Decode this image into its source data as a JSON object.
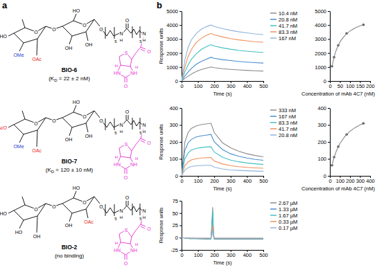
{
  "panel_labels": [
    "a",
    "b"
  ],
  "compounds": [
    {
      "name": "BIO-6",
      "caption": [
        "(K",
        "D",
        " = 22 ± 2 nM)"
      ],
      "atoms": [
        {
          "text": "HO",
          "color": "#000000"
        },
        {
          "text": "OMe",
          "color": "#1f3fd0"
        },
        {
          "text": "OAc",
          "color": "#e3231a"
        },
        {
          "text": "O",
          "color": "#000000"
        },
        {
          "text": "O",
          "color": "#000000"
        },
        {
          "text": "HO",
          "color": "#000000"
        },
        {
          "text": "O",
          "color": "#000000"
        },
        {
          "text": "OH",
          "color": "#000000"
        },
        {
          "text": "OH",
          "color": "#000000"
        },
        {
          "text": "O",
          "color": "#000000"
        }
      ]
    },
    {
      "name": "BIO-7",
      "caption": [
        "(K",
        "D",
        " = 120 ± 10 nM)"
      ],
      "atoms": [
        {
          "text": "AcO",
          "color": "#e3231a"
        },
        {
          "text": "OMe",
          "color": "#1f3fd0"
        },
        {
          "text": "OAc",
          "color": "#e3231a"
        },
        {
          "text": "O",
          "color": "#000000"
        },
        {
          "text": "O",
          "color": "#000000"
        },
        {
          "text": "HO",
          "color": "#000000"
        },
        {
          "text": "O",
          "color": "#000000"
        },
        {
          "text": "OH",
          "color": "#000000"
        },
        {
          "text": "OH",
          "color": "#000000"
        },
        {
          "text": "O",
          "color": "#000000"
        }
      ]
    },
    {
      "name": "BIO-2",
      "caption": [
        "(no binding)"
      ],
      "atoms": [
        {
          "text": "HO",
          "color": "#000000"
        },
        {
          "text": "HO",
          "color": "#000000"
        },
        {
          "text": "OH",
          "color": "#000000"
        },
        {
          "text": "O",
          "color": "#000000"
        },
        {
          "text": "O",
          "color": "#000000"
        },
        {
          "text": "HO",
          "color": "#000000"
        },
        {
          "text": "O",
          "color": "#000000"
        },
        {
          "text": "OH",
          "color": "#000000"
        },
        {
          "text": "OAc",
          "color": "#e3231a"
        },
        {
          "text": "O",
          "color": "#000000"
        }
      ]
    }
  ],
  "linker_atoms": [
    {
      "text": "5",
      "color": "#000000"
    },
    {
      "text": "N",
      "color": "#000000"
    },
    {
      "text": "H",
      "color": "#000000"
    },
    {
      "text": "O",
      "color": "#000000"
    },
    {
      "text": "5",
      "color": "#000000"
    },
    {
      "text": "N",
      "color": "#000000"
    },
    {
      "text": "H",
      "color": "#000000"
    },
    {
      "text": "O",
      "color": "#e62fd3"
    },
    {
      "text": "S",
      "color": "#e62fd3"
    },
    {
      "text": "H",
      "color": "#e62fd3"
    },
    {
      "text": "H",
      "color": "#e62fd3"
    },
    {
      "text": "HN",
      "color": "#e62fd3"
    },
    {
      "text": "NH",
      "color": "#e62fd3"
    },
    {
      "text": "O",
      "color": "#e62fd3"
    }
  ],
  "chart_data": [
    {
      "type": "line",
      "xlabel": "Time (s)",
      "ylabel": "Response units",
      "x": [
        0,
        20,
        40,
        60,
        90,
        120,
        150,
        180,
        200,
        250,
        300,
        350,
        400,
        450,
        500
      ],
      "series": [
        {
          "name": "10.4 nM",
          "color": "#8c8c8c",
          "values": [
            0,
            180,
            350,
            500,
            680,
            820,
            920,
            1000,
            950,
            880,
            830,
            790,
            760,
            730,
            710
          ]
        },
        {
          "name": "20.8 nM",
          "color": "#4a8ed0",
          "values": [
            0,
            350,
            650,
            900,
            1200,
            1400,
            1550,
            1700,
            1620,
            1530,
            1460,
            1400,
            1350,
            1310,
            1280
          ]
        },
        {
          "name": "41.7 nM",
          "color": "#43c0c0",
          "values": [
            0,
            650,
            1150,
            1550,
            1950,
            2250,
            2450,
            2600,
            2500,
            2370,
            2270,
            2190,
            2130,
            2080,
            2040
          ]
        },
        {
          "name": "83.3 nM",
          "color": "#f0905a",
          "values": [
            0,
            1000,
            1750,
            2250,
            2750,
            3050,
            3250,
            3400,
            3300,
            3150,
            3030,
            2940,
            2870,
            2810,
            2770
          ]
        },
        {
          "name": "167 nM",
          "color": "#8fb4dc",
          "values": [
            0,
            1500,
            2400,
            2950,
            3400,
            3700,
            3880,
            4000,
            3900,
            3750,
            3620,
            3520,
            3440,
            3370,
            3320
          ]
        }
      ],
      "xlim": [
        0,
        500
      ],
      "xticks": [
        0,
        100,
        200,
        300,
        400,
        500
      ],
      "ylim": [
        0,
        5000
      ],
      "yticks": [
        0,
        1000,
        2000,
        3000,
        4000,
        5000
      ],
      "legend": "right"
    },
    {
      "type": "scatter",
      "xlabel": "Concentration of mAb 4C7 (nM)",
      "series": [
        {
          "type": "scatter",
          "marker": "circle",
          "color": "#555555",
          "x": [
            10.4,
            20.8,
            41.7,
            83.3,
            167
          ],
          "values": [
            1050,
            1700,
            2550,
            3400,
            4020
          ]
        },
        {
          "type": "line",
          "color": "#888888",
          "x": [
            10.4,
            20,
            30,
            40,
            50,
            60,
            80,
            100,
            120,
            140,
            167
          ],
          "values": [
            1032,
            1667,
            2143,
            2500,
            2778,
            3000,
            3333,
            3571,
            3750,
            3889,
            4034
          ]
        }
      ],
      "xlim": [
        0,
        200
      ],
      "xticks": [
        0,
        50,
        100,
        150,
        200
      ],
      "ylim": [
        0,
        5000
      ],
      "yticks": [
        0,
        1000,
        2000,
        3000,
        4000,
        5000
      ]
    },
    {
      "type": "line",
      "xlabel": "Time (s)",
      "ylabel": "Response units",
      "x": [
        0,
        20,
        40,
        60,
        90,
        120,
        150,
        180,
        200,
        250,
        300,
        350,
        400,
        450,
        500
      ],
      "series": [
        {
          "name": "333 nM",
          "color": "#8c8c8c",
          "values": [
            0,
            200,
            255,
            280,
            295,
            302,
            306,
            310,
            255,
            195,
            165,
            145,
            130,
            120,
            112
          ]
        },
        {
          "name": "167 nM",
          "color": "#4a8ed0",
          "values": [
            0,
            150,
            195,
            215,
            230,
            236,
            240,
            244,
            200,
            155,
            130,
            115,
            105,
            97,
            92
          ]
        },
        {
          "name": "83.3 nM",
          "color": "#43c0c0",
          "values": [
            0,
            100,
            135,
            152,
            162,
            167,
            170,
            172,
            140,
            110,
            93,
            83,
            76,
            71,
            67
          ]
        },
        {
          "name": "41.7 nM",
          "color": "#f0905a",
          "values": [
            0,
            60,
            82,
            94,
            101,
            105,
            107,
            108,
            88,
            70,
            60,
            54,
            50,
            47,
            45
          ]
        },
        {
          "name": "20.8 nM",
          "color": "#8fb4dc",
          "values": [
            0,
            34,
            48,
            55,
            59,
            61,
            62,
            62,
            51,
            41,
            35,
            32,
            30,
            28,
            27
          ]
        }
      ],
      "xlim": [
        0,
        500
      ],
      "xticks": [
        0,
        100,
        200,
        300,
        400,
        500
      ],
      "ylim": [
        0,
        400
      ],
      "yticks": [
        0,
        100,
        200,
        300,
        400
      ],
      "legend": "right"
    },
    {
      "type": "scatter",
      "xlabel": "Concentration of mAb 4C7 (nM)",
      "series": [
        {
          "type": "scatter",
          "marker": "circle",
          "color": "#555555",
          "x": [
            20.8,
            41.7,
            83.3,
            167,
            333
          ],
          "values": [
            62,
            110,
            172,
            244,
            309
          ]
        },
        {
          "type": "line",
          "color": "#888888",
          "x": [
            20.8,
            40,
            60,
            80,
            100,
            150,
            200,
            250,
            300,
            333
          ],
          "values": [
            62,
            105,
            140,
            168,
            191,
            233,
            263,
            284,
            300,
            309
          ]
        }
      ],
      "xlim": [
        0,
        400
      ],
      "xticks": [
        0,
        100,
        200,
        300,
        400
      ],
      "ylim": [
        0,
        400
      ],
      "yticks": [
        0,
        100,
        200,
        300,
        400
      ]
    },
    {
      "type": "line",
      "xlabel": "Time (s)",
      "ylabel": "Response units",
      "x": [
        0,
        50,
        100,
        150,
        180,
        185,
        190,
        195,
        200,
        250,
        300,
        350,
        400,
        450,
        500
      ],
      "series": [
        {
          "name": "2.67 µM",
          "color": "#8c8c8c",
          "values": [
            0,
            -2,
            -2,
            -3,
            -3,
            25,
            62,
            8,
            -3,
            -3,
            -3,
            -3,
            -3,
            -3,
            -3
          ]
        },
        {
          "name": "1.33 µM",
          "color": "#4a8ed0",
          "values": [
            0,
            -1,
            -2,
            -2,
            -2,
            18,
            50,
            5,
            -2,
            -2,
            -2,
            -2,
            -2,
            -2,
            -2
          ]
        },
        {
          "name": "1.67 µM",
          "color": "#43c0c0",
          "values": [
            0,
            -2,
            -2,
            -2,
            -3,
            20,
            55,
            6,
            -2,
            -2,
            -2,
            -2,
            -2,
            -2,
            -2
          ]
        },
        {
          "name": "0.33 µM",
          "color": "#f0905a",
          "values": [
            0,
            -1,
            -1,
            -1,
            -1,
            8,
            25,
            3,
            -1,
            -1,
            -1,
            -1,
            -1,
            -1,
            -1
          ]
        },
        {
          "name": "0.17 µM",
          "color": "#8fb4dc",
          "values": [
            0,
            -1,
            -1,
            -1,
            -1,
            5,
            15,
            2,
            -1,
            -1,
            -1,
            -1,
            -1,
            -1,
            -1
          ]
        }
      ],
      "xlim": [
        0,
        500
      ],
      "xticks": [
        0,
        100,
        200,
        300,
        400,
        500
      ],
      "ylim": [
        -25,
        75
      ],
      "yticks": [
        -25,
        0,
        25,
        50,
        75
      ],
      "legend": "right"
    }
  ]
}
